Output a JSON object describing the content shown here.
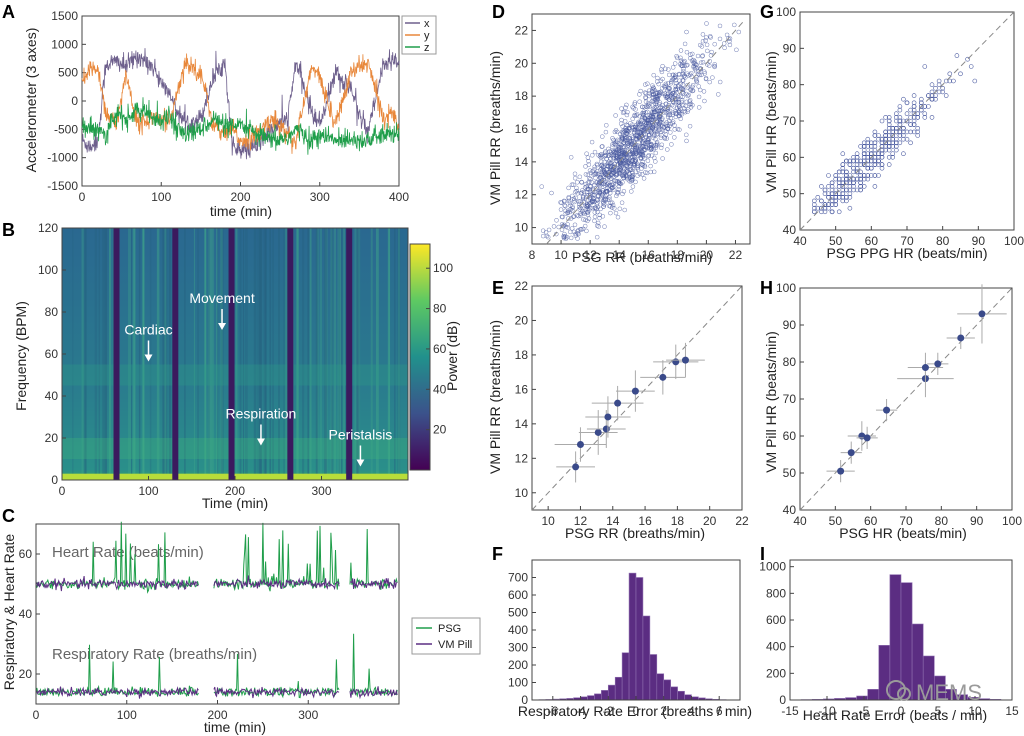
{
  "colors": {
    "x": "#6d5f8c",
    "y": "#e8873a",
    "z": "#1f9e4a",
    "psg": "#1f9e4a",
    "pill": "#5b2d82",
    "scatter": "#4a5aa0",
    "hist": "#5b2d82",
    "axis": "#444444"
  },
  "chart_data": [
    {
      "panel": "A",
      "type": "line",
      "xlabel": "time (min)",
      "ylabel": "Accelerometer (3 axes)",
      "xlim": [
        0,
        400
      ],
      "ylim": [
        -1500,
        1500
      ],
      "xticks": [
        "0",
        "100",
        "200",
        "300",
        "400"
      ],
      "yticks": [
        "-1500",
        "-1000",
        "-500",
        "0",
        "500",
        "1000",
        "1500"
      ],
      "series": [
        {
          "name": "x",
          "x": [
            0,
            10,
            20,
            30,
            45,
            55,
            70,
            90,
            110,
            130,
            150,
            165,
            180,
            190,
            200,
            220,
            240,
            260,
            270,
            290,
            300,
            320,
            340,
            360,
            380,
            390,
            400
          ],
          "y": [
            -700,
            -800,
            -700,
            650,
            700,
            600,
            800,
            600,
            100,
            -400,
            -300,
            400,
            700,
            -800,
            -900,
            -800,
            -500,
            -300,
            700,
            -200,
            -400,
            500,
            200,
            -600,
            600,
            700,
            650
          ]
        },
        {
          "name": "y",
          "x": [
            0,
            10,
            20,
            30,
            45,
            55,
            70,
            90,
            110,
            130,
            150,
            165,
            180,
            190,
            200,
            220,
            240,
            260,
            270,
            290,
            300,
            320,
            340,
            360,
            380,
            390,
            400
          ],
          "y": [
            300,
            550,
            600,
            -200,
            -400,
            500,
            -400,
            -300,
            -400,
            700,
            500,
            -400,
            -600,
            -500,
            -700,
            -600,
            -300,
            -600,
            -700,
            600,
            400,
            -400,
            500,
            700,
            -300,
            -200,
            -400
          ]
        },
        {
          "name": "z",
          "x": [
            0,
            10,
            20,
            30,
            45,
            55,
            70,
            90,
            110,
            130,
            150,
            165,
            180,
            190,
            200,
            220,
            240,
            260,
            270,
            290,
            300,
            320,
            340,
            360,
            380,
            390,
            400
          ],
          "y": [
            -400,
            -500,
            -450,
            -600,
            -200,
            -350,
            -150,
            -300,
            -300,
            -600,
            -500,
            -300,
            -450,
            -500,
            -400,
            -600,
            -700,
            -650,
            -500,
            -700,
            -600,
            -700,
            -650,
            -700,
            -600,
            -600,
            -550
          ]
        }
      ]
    },
    {
      "panel": "B",
      "type": "heatmap",
      "xlabel": "Time (min)",
      "ylabel": "Frequency (BPM)",
      "xlim": [
        0,
        400
      ],
      "ylim": [
        0,
        120
      ],
      "xticks": [
        "0",
        "100",
        "200",
        "300"
      ],
      "yticks": [
        "0",
        "20",
        "40",
        "60",
        "80",
        "100",
        "120"
      ],
      "colorbar": {
        "label": "Power (dB)",
        "ticks": [
          "20",
          "40",
          "60",
          "80",
          "100"
        ],
        "range": [
          0,
          112
        ]
      },
      "gaps_min": [
        63,
        131,
        196,
        264,
        332
      ],
      "annotations": [
        {
          "text": "Cardiac",
          "x": 100,
          "y": 55
        },
        {
          "text": "Movement",
          "x": 185,
          "y": 70
        },
        {
          "text": "Respiration",
          "x": 230,
          "y": 15
        },
        {
          "text": "Peristalsis",
          "x": 345,
          "y": 5
        }
      ]
    },
    {
      "panel": "C",
      "type": "line",
      "xlabel": "time (min)",
      "ylabel": "Respiratory & Heart Rate",
      "xlim": [
        0,
        400
      ],
      "ylim": [
        10,
        70
      ],
      "xticks": [
        "0",
        "100",
        "200",
        "300"
      ],
      "yticks": [
        "20",
        "40",
        "60"
      ],
      "text_labels": [
        "Heart Rate (beats/min)",
        "Respiratory Rate (breaths/min)"
      ],
      "series": [
        {
          "name": "PSG"
        },
        {
          "name": "VM Pill"
        }
      ],
      "heart_rate_mean": 50,
      "resp_rate_mean": 14,
      "gaps_min": [
        [
          180,
          195
        ],
        [
          335,
          345
        ]
      ]
    },
    {
      "panel": "D",
      "type": "scatter",
      "xlabel": "PSG RR (breaths/min)",
      "ylabel": "VM Pill RR (breaths/min)",
      "xlim": [
        8,
        23
      ],
      "ylim": [
        9,
        23
      ],
      "xticks": [
        "8",
        "10",
        "12",
        "14",
        "16",
        "18",
        "20",
        "22"
      ],
      "yticks": [
        "10",
        "12",
        "14",
        "16",
        "18",
        "20",
        "22"
      ],
      "identity_line": true,
      "n_points": 1400,
      "x_mean": 14.8,
      "x_sd": 2.6
    },
    {
      "panel": "E",
      "type": "scatter",
      "xlabel": "PSG RR (breaths/min)",
      "ylabel": "VM Pill RR (breaths/min)",
      "xlim": [
        9,
        22
      ],
      "ylim": [
        9,
        22
      ],
      "xticks": [
        "10",
        "12",
        "14",
        "16",
        "18",
        "20",
        "22"
      ],
      "yticks": [
        "10",
        "12",
        "14",
        "16",
        "18",
        "20",
        "22"
      ],
      "identity_line": true,
      "points": [
        [
          11.7,
          11.5
        ],
        [
          12.0,
          12.8
        ],
        [
          13.1,
          13.5
        ],
        [
          13.6,
          13.7
        ],
        [
          13.7,
          14.4
        ],
        [
          14.3,
          15.2
        ],
        [
          15.4,
          15.9
        ],
        [
          17.1,
          16.7
        ],
        [
          17.9,
          17.6
        ],
        [
          18.5,
          17.7
        ]
      ],
      "x_err": [
        1.2,
        1.6,
        1.2,
        1.2,
        1.4,
        1.6,
        1.2,
        1.4,
        1.4,
        1.2
      ],
      "y_err": [
        0.9,
        1.0,
        1.3,
        1.1,
        1.2,
        1.0,
        1.2,
        1.0,
        1.0,
        1.0
      ]
    },
    {
      "panel": "F",
      "type": "bar",
      "xlabel": "Respiratory Rate Error (breaths / min)",
      "xlim": [
        -7.5,
        7.5
      ],
      "ylim": [
        0,
        800
      ],
      "bin_width": 0.5,
      "xticks": [
        "-6",
        "-4",
        "-2",
        "0",
        "2",
        "4",
        "6"
      ],
      "yticks": [
        "0",
        "100",
        "200",
        "300",
        "400",
        "500",
        "600",
        "700"
      ],
      "bin_left_edges": [
        -7,
        -6.5,
        -6,
        -5.5,
        -5,
        -4.5,
        -4,
        -3.5,
        -3,
        -2.5,
        -2,
        -1.5,
        -1,
        -0.5,
        0,
        0.5,
        1,
        1.5,
        2,
        2.5,
        3,
        3.5,
        4,
        4.5,
        5,
        5.5,
        6,
        6.5
      ],
      "values": [
        2,
        3,
        5,
        7,
        9,
        13,
        18,
        25,
        35,
        55,
        85,
        130,
        270,
        725,
        700,
        480,
        260,
        150,
        115,
        75,
        50,
        30,
        18,
        12,
        7,
        4,
        2,
        1
      ]
    },
    {
      "panel": "G",
      "type": "scatter",
      "xlabel": "PSG PPG HR (beats/min)",
      "ylabel": "VM Pill HR (beats/min)",
      "xlim": [
        40,
        100
      ],
      "ylim": [
        40,
        100
      ],
      "xticks": [
        "40",
        "50",
        "60",
        "70",
        "80",
        "90",
        "100"
      ],
      "yticks": [
        "40",
        "50",
        "60",
        "70",
        "80",
        "90",
        "100"
      ],
      "identity_line": true,
      "n_points": 500
    },
    {
      "panel": "H",
      "type": "scatter",
      "xlabel": "PSG HR (beats/min)",
      "ylabel": "VM Pill HR (beats/min)",
      "xlim": [
        40,
        100
      ],
      "ylim": [
        40,
        100
      ],
      "xticks": [
        "40",
        "50",
        "60",
        "70",
        "80",
        "90",
        "100"
      ],
      "yticks": [
        "40",
        "50",
        "60",
        "70",
        "80",
        "90",
        "100"
      ],
      "identity_line": true,
      "points": [
        [
          51.5,
          50.5
        ],
        [
          54.5,
          55.5
        ],
        [
          57.5,
          60
        ],
        [
          59,
          59.5
        ],
        [
          64.5,
          67
        ],
        [
          75.5,
          75.5
        ],
        [
          75.5,
          78.5
        ],
        [
          79,
          79.5
        ],
        [
          85.5,
          86.5
        ],
        [
          91.5,
          93
        ]
      ],
      "x_err": [
        4,
        3,
        4,
        3,
        3,
        8,
        5,
        3,
        4,
        7
      ],
      "y_err": [
        3,
        3,
        4,
        3,
        3,
        5,
        4,
        3,
        3,
        8
      ]
    },
    {
      "panel": "I",
      "type": "bar",
      "xlabel": "Heart Rate Error (beats / min)",
      "xlim": [
        -15,
        15
      ],
      "ylim": [
        0,
        1050
      ],
      "bin_width": 1.5,
      "xticks": [
        "-15",
        "-10",
        "-5",
        "0",
        "5",
        "10",
        "15"
      ],
      "yticks": [
        "0",
        "200",
        "400",
        "600",
        "800",
        "1000"
      ],
      "bin_left_edges": [
        -13.5,
        -12,
        -10.5,
        -9,
        -7.5,
        -6,
        -4.5,
        -3,
        -1.5,
        0,
        1.5,
        3,
        4.5,
        6,
        7.5,
        9,
        10.5,
        12
      ],
      "values": [
        3,
        5,
        8,
        12,
        18,
        30,
        80,
        410,
        940,
        880,
        570,
        330,
        180,
        80,
        40,
        20,
        10,
        5
      ]
    }
  ],
  "panel_letters": [
    "A",
    "B",
    "C",
    "D",
    "E",
    "F",
    "G",
    "H",
    "I"
  ],
  "watermark": "MEMS"
}
